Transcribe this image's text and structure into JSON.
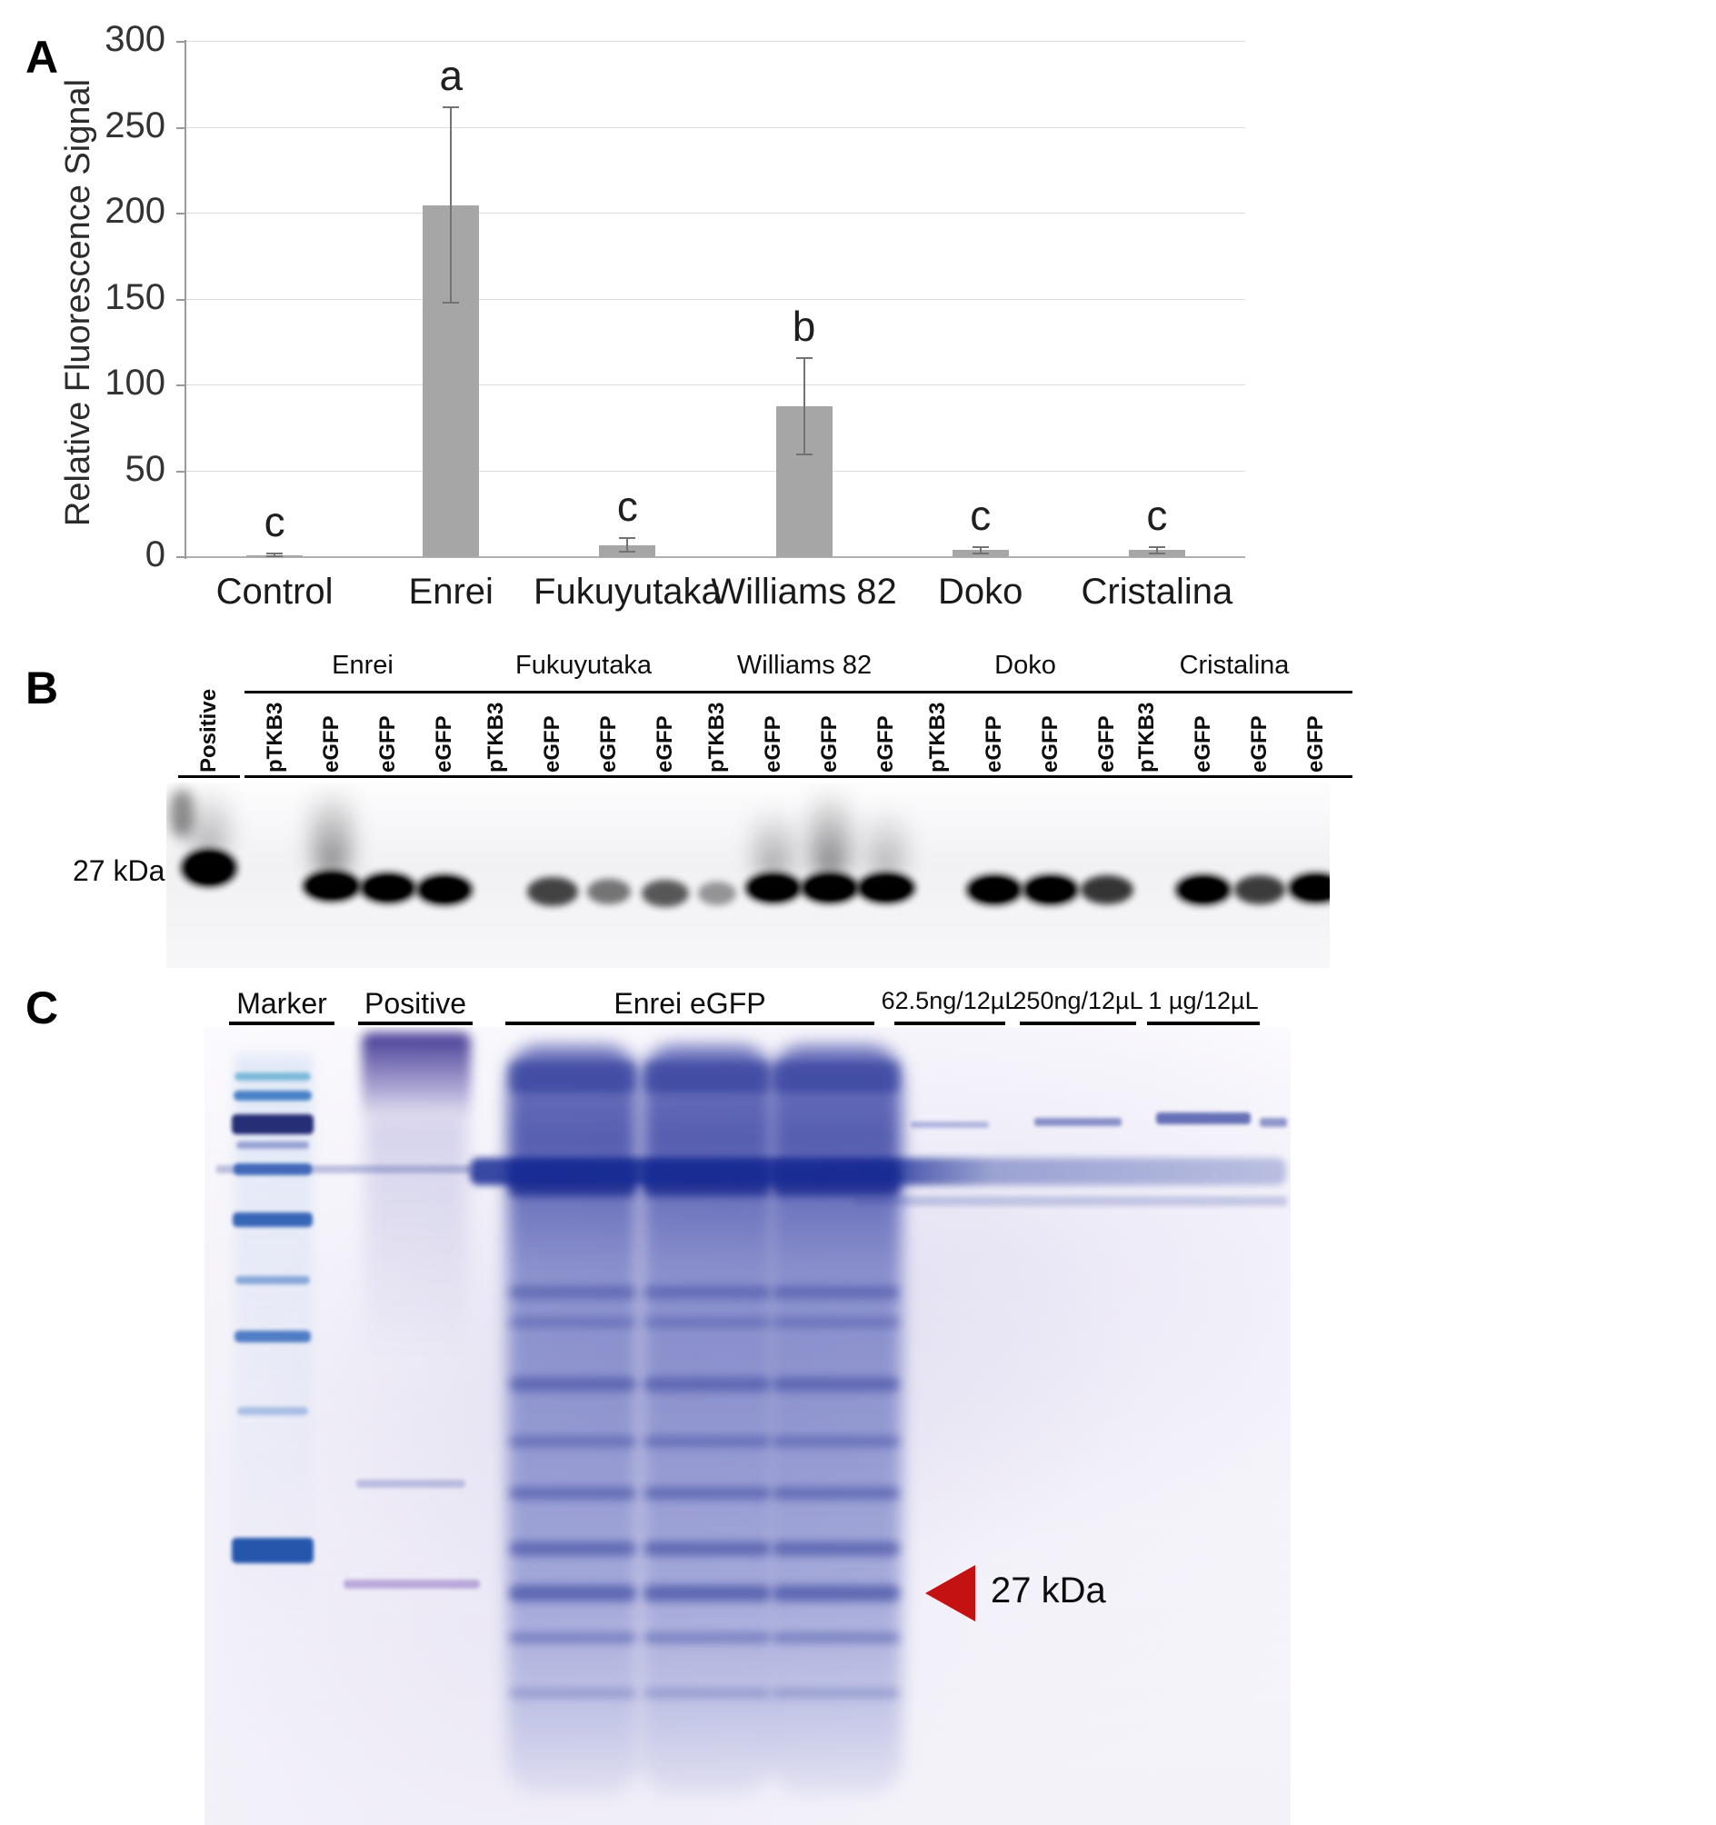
{
  "figure": {
    "panel_a_label": "A",
    "panel_b_label": "B",
    "panel_c_label": "C"
  },
  "chart_data": {
    "type": "bar",
    "title": "",
    "xlabel": "",
    "ylabel": "Relative Fluorescence Signal",
    "ylim": [
      0,
      300
    ],
    "yticks": [
      0,
      50,
      100,
      150,
      200,
      250,
      300
    ],
    "grid": true,
    "legend": "none",
    "bar_color": "#a6a6a6",
    "categories": [
      "Control",
      "Enrei",
      "Fukuyutaka",
      "Williams 82",
      "Doko",
      "Cristalina"
    ],
    "values": [
      1,
      205,
      7,
      88,
      4,
      4
    ],
    "errors": [
      1,
      57,
      4,
      28,
      2,
      2
    ],
    "sig_letters": [
      "c",
      "a",
      "c",
      "b",
      "c",
      "c"
    ]
  },
  "blot": {
    "kda_label": "27 kDa",
    "positive_lane": {
      "label": "Positive",
      "band": 0.95,
      "smear": 0.55,
      "dy": -20,
      "tall": true
    },
    "groups": [
      {
        "name": "Enrei",
        "lanes": [
          {
            "label": "pTKB3",
            "band": 0
          },
          {
            "label": "eGFP",
            "band": 1,
            "smear": 0.85
          },
          {
            "label": "eGFP",
            "band": 0.95,
            "dy": 2
          },
          {
            "label": "eGFP",
            "band": 0.95,
            "dy": 4
          }
        ]
      },
      {
        "name": "Fukuyutaka",
        "lanes": [
          {
            "label": "pTKB3",
            "band": 0
          },
          {
            "label": "eGFP",
            "band": 0.65,
            "dy": 6
          },
          {
            "label": "eGFP",
            "band": 0.3,
            "dy": 6
          },
          {
            "label": "eGFP",
            "band": 0.5,
            "dy": 8
          }
        ]
      },
      {
        "name": "Williams 82",
        "lanes": [
          {
            "label": "pTKB3",
            "band": 0.08,
            "dy": 8
          },
          {
            "label": "eGFP",
            "band": 0.95,
            "smear": 0.6,
            "dy": 2
          },
          {
            "label": "eGFP",
            "band": 1,
            "smear": 0.9,
            "dy": 2
          },
          {
            "label": "eGFP",
            "band": 1,
            "smear": 0.5,
            "dy": 2
          }
        ]
      },
      {
        "name": "Doko",
        "lanes": [
          {
            "label": "pTKB3",
            "band": 0
          },
          {
            "label": "eGFP",
            "band": 0.9,
            "dy": 4
          },
          {
            "label": "eGFP",
            "band": 0.9,
            "dy": 4
          },
          {
            "label": "eGFP",
            "band": 0.75,
            "dy": 4
          }
        ]
      },
      {
        "name": "Cristalina",
        "lanes": [
          {
            "label": "pTKB3",
            "band": 0
          },
          {
            "label": "eGFP",
            "band": 0.9,
            "dy": 4
          },
          {
            "label": "eGFP",
            "band": 0.7,
            "dy": 4
          },
          {
            "label": "eGFP",
            "band": 0.9,
            "dy": 2
          }
        ]
      }
    ]
  },
  "gel": {
    "lanes": [
      {
        "label": "Marker"
      },
      {
        "label": "Positive"
      },
      {
        "label": "Enrei eGFP"
      },
      {
        "label": "62.5ng/12µL"
      },
      {
        "label": "250ng/12µL"
      },
      {
        "label": "1 µg/12µL"
      }
    ],
    "arrow_label": "27 kDa"
  }
}
